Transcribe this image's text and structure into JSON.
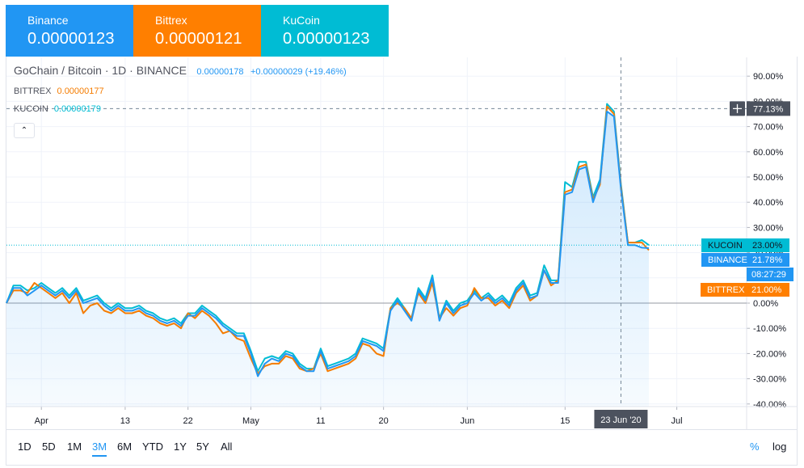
{
  "tickers": [
    {
      "exchange": "Binance",
      "price": "0.00000123",
      "color": "#2196f3"
    },
    {
      "exchange": "Bittrex",
      "price": "0.00000121",
      "color": "#ff7f00"
    },
    {
      "exchange": "KuCoin",
      "price": "0.00000123",
      "color": "#00bcd4"
    }
  ],
  "legend": {
    "title": "GoChain / Bitcoin · 1D · BINANCE",
    "main_value": "0.00000178",
    "main_change": "+0.00000029 (+19.46%)",
    "rows": [
      {
        "name": "BITTREX",
        "value": "0.00000177"
      },
      {
        "name": "KUCOIN",
        "value": "0.00000179"
      }
    ],
    "collapse_glyph": "⌃"
  },
  "chart_data": {
    "type": "line",
    "y_unit": "percent",
    "ylim": [
      -41,
      99
    ],
    "y_ticks": [
      "90.00%",
      "80.00%",
      "70.00%",
      "60.00%",
      "50.00%",
      "40.00%",
      "30.00%",
      "20.00%",
      "10.00%",
      "0.00%",
      "-10.00%",
      "-20.00%",
      "-30.00%",
      "-40.00%"
    ],
    "x_ticks": [
      {
        "label": "Apr",
        "day": 5
      },
      {
        "label": "13",
        "day": 17
      },
      {
        "label": "22",
        "day": 26
      },
      {
        "label": "May",
        "day": 35
      },
      {
        "label": "11",
        "day": 45
      },
      {
        "label": "20",
        "day": 54
      },
      {
        "label": "Jun",
        "day": 66
      },
      {
        "label": "15",
        "day": 80
      },
      {
        "label": "Jul",
        "day": 96
      }
    ],
    "x_range": [
      0,
      106
    ],
    "grid": true,
    "series": [
      {
        "name": "BINANCE",
        "color": "#2196f3",
        "label": "21.78%",
        "last": 21.78,
        "values": [
          0,
          6,
          6,
          3,
          5,
          7,
          5,
          3,
          5,
          2,
          5,
          0,
          1,
          2,
          -1,
          -3,
          -1,
          -3,
          -3,
          -2,
          -4,
          -5,
          -7,
          -8,
          -7,
          -9,
          -5,
          -5,
          -2,
          -4,
          -6,
          -9,
          -11,
          -13,
          -13,
          -20,
          -29,
          -24,
          -22,
          -23,
          -20,
          -21,
          -25,
          -27,
          -27,
          -19,
          -26,
          -25,
          -24,
          -23,
          -21,
          -15,
          -16,
          -17,
          -19,
          -3,
          1,
          -3,
          -7,
          5,
          1,
          10,
          -7,
          0,
          -4,
          -1,
          0,
          4,
          1,
          3,
          0,
          2,
          -1,
          5,
          8,
          2,
          3,
          13,
          8,
          8,
          43,
          44,
          53,
          54,
          40,
          48,
          76,
          74,
          45,
          23,
          23,
          22,
          21.78
        ]
      },
      {
        "name": "BITTREX",
        "color": "#f57c00",
        "label": "21.00%",
        "last": 21.0,
        "values": [
          0,
          5,
          5,
          4,
          8,
          6,
          4,
          2,
          4,
          0,
          4,
          -4,
          -1,
          0,
          -3,
          -4,
          -2,
          -4,
          -4,
          -3,
          -5,
          -6,
          -8,
          -9,
          -8,
          -10,
          -4,
          -6,
          -3,
          -5,
          -8,
          -12,
          -11,
          -14,
          -15,
          -22,
          -28,
          -25,
          -24,
          -24,
          -21,
          -22,
          -26,
          -27,
          -26,
          -20,
          -27,
          -26,
          -25,
          -24,
          -22,
          -16,
          -17,
          -20,
          -21,
          -2,
          0,
          -2,
          -6,
          4,
          0,
          8,
          -6,
          -2,
          -5,
          -2,
          -1,
          6,
          2,
          2,
          -1,
          1,
          -2,
          4,
          7,
          1,
          3,
          13,
          7,
          9,
          44,
          45,
          54,
          55,
          41,
          47,
          78,
          75,
          46,
          24,
          24,
          24,
          21.0
        ]
      },
      {
        "name": "KUCOIN",
        "color": "#00bcd4",
        "label": "23.00%",
        "last": 23.0,
        "values": [
          0,
          7,
          7,
          5,
          6,
          8,
          6,
          4,
          6,
          3,
          6,
          1,
          2,
          3,
          0,
          -2,
          0,
          -2,
          -2,
          -1,
          -3,
          -4,
          -6,
          -7,
          -6,
          -8,
          -4,
          -4,
          -1,
          -3,
          -5,
          -8,
          -10,
          -12,
          -12,
          -19,
          -27,
          -22,
          -21,
          -22,
          -19,
          -20,
          -24,
          -26,
          -26,
          -18,
          -25,
          -24,
          -23,
          -22,
          -20,
          -14,
          -15,
          -16,
          -18,
          -2,
          2,
          -2,
          -6,
          6,
          2,
          11,
          -6,
          1,
          -3,
          0,
          1,
          5,
          2,
          4,
          1,
          3,
          0,
          6,
          9,
          3,
          4,
          15,
          9,
          9,
          48,
          46,
          56,
          56,
          42,
          49,
          79,
          76,
          47,
          24,
          24,
          25,
          23.0
        ]
      }
    ],
    "crosshair": {
      "price_label": "77.13%",
      "date_label": "23 Jun '20",
      "day": 88,
      "value": 77.13
    },
    "countdown": "08:27:29"
  },
  "ranges": [
    "1D",
    "5D",
    "1M",
    "3M",
    "6M",
    "YTD",
    "1Y",
    "5Y",
    "All"
  ],
  "active_range": "3M",
  "scale_toggles": {
    "percent": "%",
    "log": "log"
  }
}
